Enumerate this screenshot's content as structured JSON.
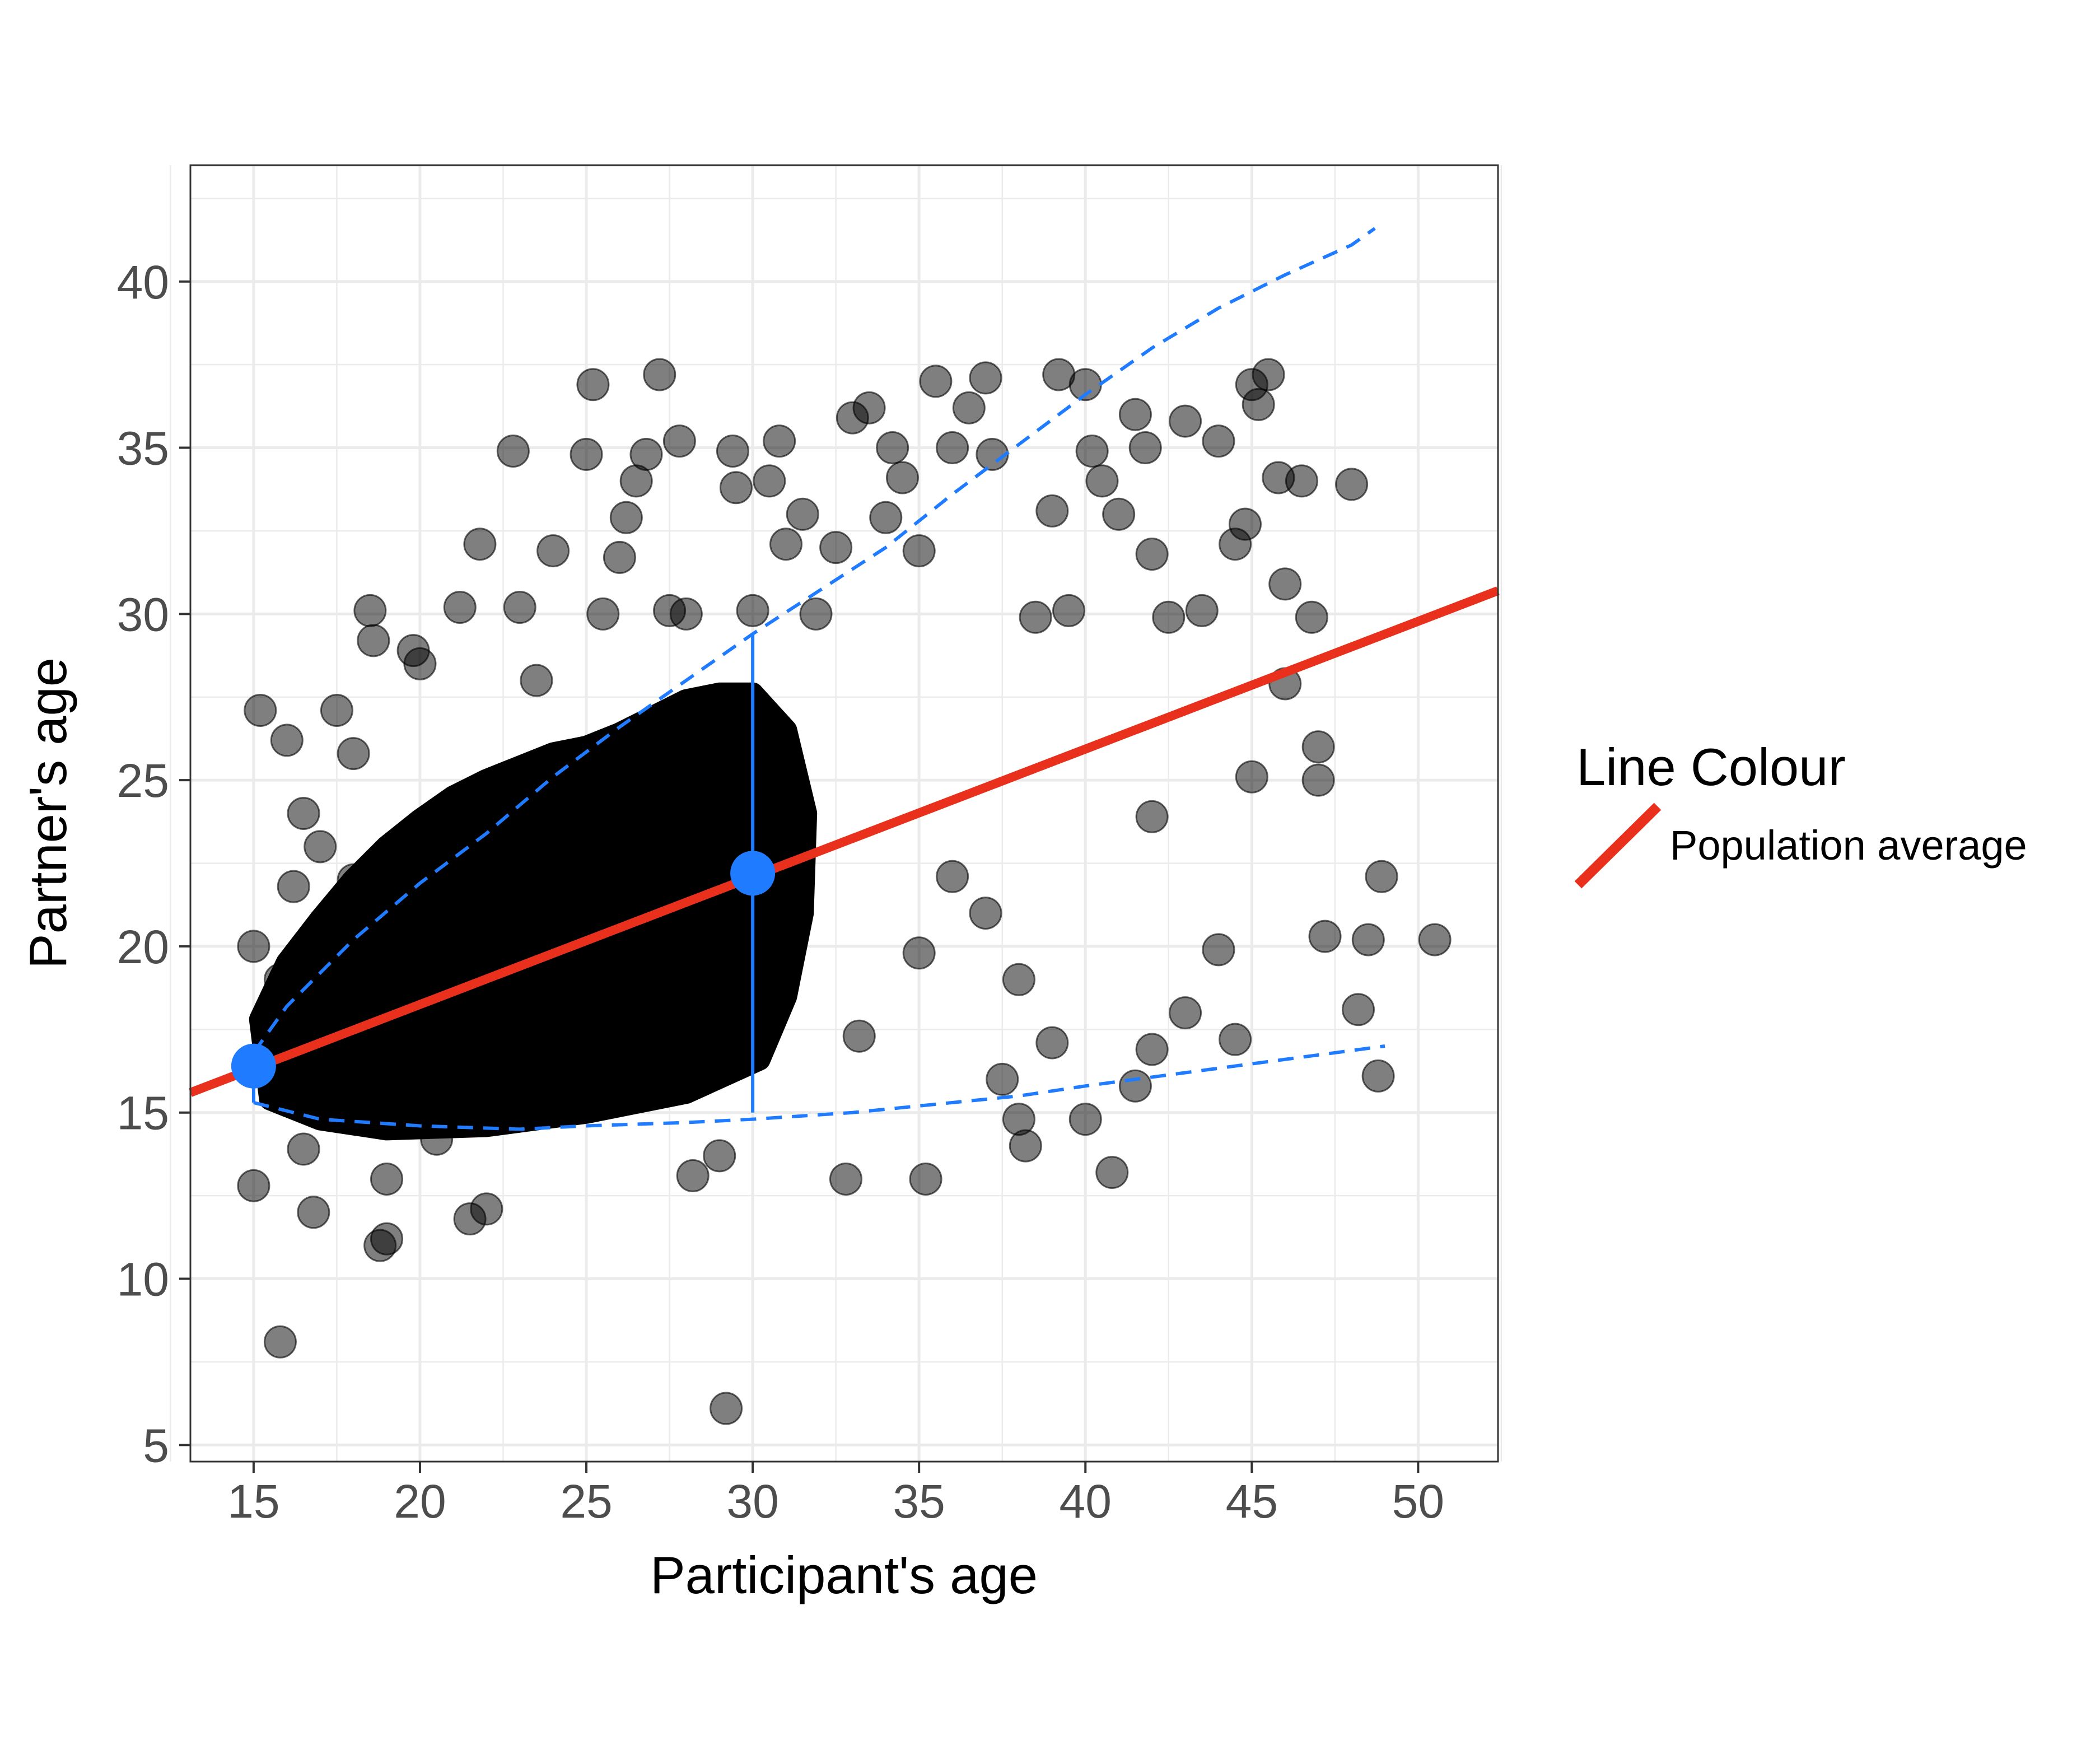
{
  "chart_data": {
    "type": "scatter",
    "title": "",
    "xlabel": "Participant's age",
    "ylabel": "Partner's age",
    "xlim": [
      13.1,
      52.4
    ],
    "ylim": [
      4.5,
      43.5
    ],
    "x_ticks": [
      15,
      20,
      25,
      30,
      35,
      40,
      45,
      50
    ],
    "y_ticks": [
      5,
      10,
      15,
      20,
      25,
      30,
      35,
      40
    ],
    "grid": true,
    "legend": {
      "title": "Line Colour",
      "placement": "right",
      "entries": [
        {
          "label": "Population average",
          "color": "#e8301c"
        }
      ]
    },
    "colors": {
      "points": "#000000",
      "regression_line": "#e8301c",
      "highlight": "#1f7bff",
      "grid": "#ebebeb",
      "panel_border": "#333333"
    },
    "regression_line": {
      "name": "Population average",
      "x": [
        13.1,
        52.4
      ],
      "y": [
        15.6,
        30.7
      ]
    },
    "highlight_points": [
      {
        "x": 15,
        "y": 16.4
      },
      {
        "x": 30,
        "y": 22.2
      }
    ],
    "interval_segment": {
      "x": 30,
      "y_low": 15.0,
      "y_high": 29.4
    },
    "upper_band": {
      "x": [
        15,
        16,
        18,
        20,
        22,
        24,
        26,
        28,
        30,
        32,
        34,
        36,
        38,
        40,
        42,
        44,
        46,
        48,
        48.7
      ],
      "y": [
        16.8,
        18.2,
        20.2,
        21.9,
        23.4,
        25.1,
        26.6,
        28.0,
        29.4,
        30.7,
        32.0,
        33.6,
        35.1,
        36.6,
        38.0,
        39.2,
        40.2,
        41.1,
        41.6
      ]
    },
    "lower_band": {
      "x": [
        15,
        17,
        20,
        23,
        25,
        28,
        30,
        33,
        35,
        38,
        40,
        43,
        46,
        49
      ],
      "y": [
        15.3,
        14.8,
        14.6,
        14.5,
        14.6,
        14.7,
        14.8,
        15.0,
        15.2,
        15.5,
        15.8,
        16.2,
        16.6,
        17.0
      ]
    },
    "points": [
      [
        15.0,
        20.0
      ],
      [
        15.2,
        27.1
      ],
      [
        15.0,
        12.8
      ],
      [
        15.8,
        8.1
      ],
      [
        16.0,
        26.2
      ],
      [
        16.5,
        24.0
      ],
      [
        16.8,
        12.0
      ],
      [
        17.5,
        27.1
      ],
      [
        18.0,
        22.0
      ],
      [
        18.5,
        30.1
      ],
      [
        18.6,
        29.2
      ],
      [
        18.8,
        11.0
      ],
      [
        19.0,
        11.2
      ],
      [
        19.8,
        28.9
      ],
      [
        20.0,
        28.5
      ],
      [
        20.5,
        14.2
      ],
      [
        21.2,
        30.2
      ],
      [
        21.5,
        11.8
      ],
      [
        21.8,
        32.1
      ],
      [
        22.0,
        12.1
      ],
      [
        22.8,
        34.9
      ],
      [
        23.0,
        30.2
      ],
      [
        23.5,
        28.0
      ],
      [
        24.0,
        31.9
      ],
      [
        25.0,
        34.8
      ],
      [
        25.2,
        36.9
      ],
      [
        25.5,
        30.0
      ],
      [
        26.0,
        31.7
      ],
      [
        26.2,
        32.9
      ],
      [
        26.5,
        34.0
      ],
      [
        26.8,
        34.8
      ],
      [
        27.2,
        37.2
      ],
      [
        27.5,
        30.1
      ],
      [
        27.8,
        35.2
      ],
      [
        28.0,
        30.0
      ],
      [
        28.2,
        13.1
      ],
      [
        29.0,
        13.7
      ],
      [
        29.2,
        6.1
      ],
      [
        29.4,
        34.9
      ],
      [
        29.5,
        33.8
      ],
      [
        30.0,
        30.1
      ],
      [
        30.5,
        34.0
      ],
      [
        30.8,
        35.2
      ],
      [
        31.0,
        32.1
      ],
      [
        31.5,
        33.0
      ],
      [
        31.9,
        30.0
      ],
      [
        32.5,
        32.0
      ],
      [
        32.8,
        13.0
      ],
      [
        33.0,
        35.9
      ],
      [
        33.2,
        17.3
      ],
      [
        33.5,
        36.2
      ],
      [
        34.0,
        32.9
      ],
      [
        34.2,
        35.0
      ],
      [
        34.5,
        34.1
      ],
      [
        35.0,
        31.9
      ],
      [
        35.2,
        13.0
      ],
      [
        35.5,
        37.0
      ],
      [
        36.0,
        35.0
      ],
      [
        36.5,
        36.2
      ],
      [
        37.0,
        37.1
      ],
      [
        37.2,
        34.8
      ],
      [
        37.5,
        16.0
      ],
      [
        38.0,
        14.8
      ],
      [
        38.2,
        14.0
      ],
      [
        38.5,
        29.9
      ],
      [
        39.0,
        33.1
      ],
      [
        39.2,
        37.2
      ],
      [
        39.5,
        30.1
      ],
      [
        40.0,
        36.9
      ],
      [
        40.2,
        34.9
      ],
      [
        40.5,
        34.0
      ],
      [
        40.8,
        13.2
      ],
      [
        41.0,
        33.0
      ],
      [
        41.5,
        36.0
      ],
      [
        41.8,
        35.0
      ],
      [
        42.0,
        31.8
      ],
      [
        42.5,
        29.9
      ],
      [
        43.0,
        35.8
      ],
      [
        43.5,
        30.1
      ],
      [
        44.0,
        35.2
      ],
      [
        44.5,
        32.1
      ],
      [
        44.8,
        32.7
      ],
      [
        45.0,
        36.9
      ],
      [
        45.2,
        36.3
      ],
      [
        45.5,
        37.2
      ],
      [
        45.8,
        34.1
      ],
      [
        46.0,
        30.9
      ],
      [
        46.5,
        34.0
      ],
      [
        46.8,
        29.9
      ],
      [
        47.0,
        26.0
      ],
      [
        47.2,
        20.3
      ],
      [
        48.0,
        33.9
      ],
      [
        48.2,
        18.1
      ],
      [
        48.5,
        20.2
      ],
      [
        48.8,
        16.1
      ],
      [
        48.9,
        22.1
      ],
      [
        50.5,
        20.2
      ],
      [
        42.0,
        23.9
      ],
      [
        43.0,
        18.0
      ],
      [
        44.0,
        19.9
      ],
      [
        44.5,
        17.2
      ],
      [
        45.0,
        25.1
      ],
      [
        46.0,
        27.9
      ],
      [
        47.0,
        25.0
      ],
      [
        42.0,
        16.9
      ],
      [
        41.5,
        15.8
      ],
      [
        40.0,
        14.8
      ],
      [
        39.0,
        17.1
      ],
      [
        38.0,
        19.0
      ],
      [
        37.0,
        21.0
      ],
      [
        36.0,
        22.1
      ],
      [
        35.0,
        19.8
      ],
      [
        17.0,
        23.0
      ],
      [
        17.5,
        20.5
      ],
      [
        18.0,
        25.8
      ],
      [
        16.2,
        21.8
      ],
      [
        15.8,
        19.0
      ],
      [
        16.5,
        13.9
      ],
      [
        17.0,
        15.2
      ],
      [
        19.0,
        13.0
      ]
    ]
  }
}
